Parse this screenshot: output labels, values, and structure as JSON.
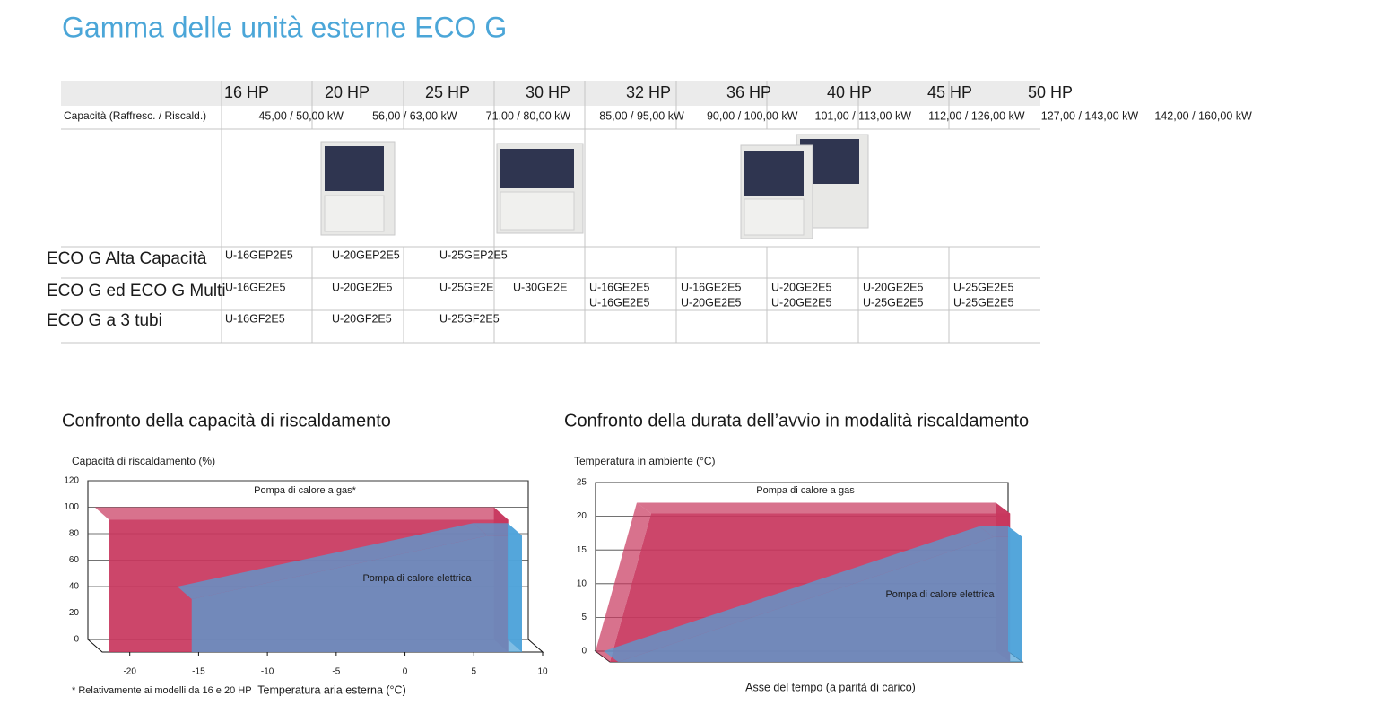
{
  "header": {
    "title": "Gamma delle unità esterne ECO G"
  },
  "table": {
    "columns": [
      "16 HP",
      "20 HP",
      "25 HP",
      "30 HP",
      "32 HP",
      "36 HP",
      "40 HP",
      "45 HP",
      "50 HP"
    ],
    "capacity_label": "Capacità (Raffresc. / Riscald.)",
    "capacity": [
      "45,00 / 50,00 kW",
      "56,00 / 63,00 kW",
      "71,00 / 80,00 kW",
      "85,00 / 95,00 kW",
      "90,00 / 100,00 kW",
      "101,00 / 113,00 kW",
      "112,00 / 126,00 kW",
      "127,00 / 143,00 kW",
      "142,00 / 160,00 kW"
    ],
    "rows": [
      {
        "label": "ECO G Alta Capacità",
        "cells": [
          [
            "U-16GEP2E5"
          ],
          [
            "U-20GEP2E5"
          ],
          [
            "U-25GEP2E5"
          ]
        ]
      },
      {
        "label": "ECO G ed ECO G Multi",
        "cells": [
          [
            "U-16GE2E5"
          ],
          [
            "U-20GE2E5"
          ],
          [
            "U-25GE2E"
          ],
          [
            "U-30GE2E"
          ],
          [
            "U-16GE2E5",
            "U-16GE2E5"
          ],
          [
            "U-16GE2E5",
            "U-20GE2E5"
          ],
          [
            "U-20GE2E5",
            "U-20GE2E5"
          ],
          [
            "U-20GE2E5",
            "U-25GE2E5"
          ],
          [
            "U-25GE2E5",
            "U-25GE2E5"
          ]
        ]
      },
      {
        "label": "ECO G a 3 tubi",
        "cells": [
          [
            "U-16GF2E5"
          ],
          [
            "U-20GF2E5"
          ],
          [
            "U-25GF2E5"
          ]
        ]
      }
    ]
  },
  "chart_data": [
    {
      "type": "area3d",
      "title": "Confronto della capacità di riscaldamento",
      "y_label": "Capacità di riscaldamento (%)",
      "x_label": "Temperatura aria esterna (°C)",
      "footnote": "* Relativamente ai modelli da 16 e 20 HP",
      "xlim": [
        -22,
        10
      ],
      "xticks": [
        -20,
        -15,
        -10,
        -5,
        0,
        5,
        10
      ],
      "ylim": [
        0,
        120
      ],
      "yticks": [
        0,
        20,
        40,
        60,
        80,
        100,
        120
      ],
      "grid": true,
      "series": [
        {
          "name": "Pompa di calore a gas*",
          "color": "#c8365d",
          "x": [
            -21.5,
            7.5
          ],
          "values": [
            100,
            100
          ]
        },
        {
          "name": "Pompa di calore elettrica",
          "color": "#4fa3da",
          "x": [
            -15.5,
            6,
            8.5
          ],
          "values": [
            40,
            88,
            88
          ]
        }
      ]
    },
    {
      "type": "area3d",
      "title": "Confronto della durata dell’avvio in modalità riscaldamento",
      "y_label": "Temperatura in ambiente (°C)",
      "x_label": "Asse del tempo (a parità di carico)",
      "xlim": [
        0,
        100
      ],
      "ylim": [
        0,
        25
      ],
      "yticks": [
        0,
        5,
        10,
        15,
        20,
        25
      ],
      "grid": true,
      "series": [
        {
          "name": "Pompa di calore a gas",
          "color": "#c8365d",
          "x": [
            0,
            10,
            97
          ],
          "values": [
            0,
            22,
            22
          ]
        },
        {
          "name": "Pompa di calore elettrica",
          "color": "#4fa3da",
          "x": [
            2,
            93,
            100
          ],
          "values": [
            0,
            18.5,
            18.5
          ]
        }
      ]
    }
  ]
}
